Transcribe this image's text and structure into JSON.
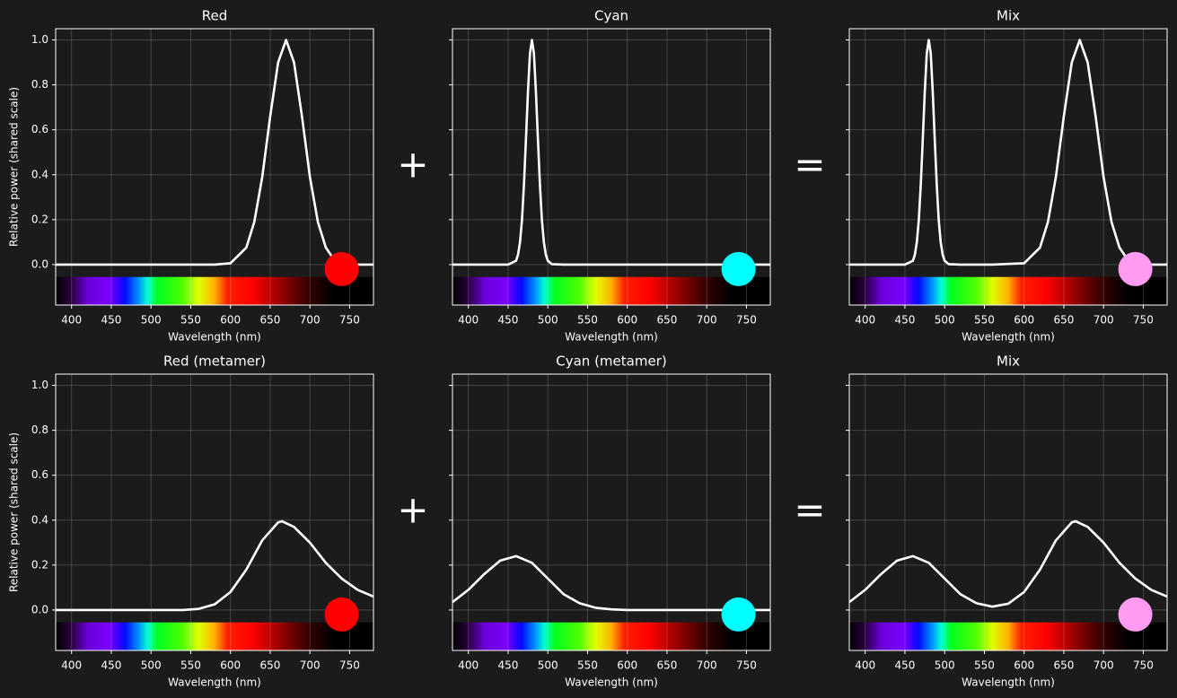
{
  "chart_data": [
    {
      "type": "line",
      "title": "Red",
      "xlabel": "Wavelength (nm)",
      "ylabel": "Relative power (shared scale)",
      "color": "#ffffff",
      "swatch_color": "#ff0000",
      "x": [
        380,
        420,
        460,
        500,
        540,
        580,
        600,
        620,
        630,
        640,
        650,
        660,
        670,
        680,
        690,
        700,
        710,
        720,
        730,
        740,
        760,
        780
      ],
      "values": [
        0,
        0,
        0,
        0,
        0,
        0,
        0.006,
        0.076,
        0.19,
        0.39,
        0.66,
        0.9,
        1,
        0.9,
        0.66,
        0.39,
        0.19,
        0.076,
        0.024,
        0.006,
        0,
        0
      ],
      "xlim": [
        380,
        780
      ],
      "xticks": [
        400,
        450,
        500,
        550,
        600,
        650,
        700,
        750
      ],
      "ylim": [
        -0.18,
        1.05
      ],
      "yticks": [
        {
          "value": 0,
          "label": "0.0"
        },
        0.2,
        0.4,
        0.6,
        0.8,
        {
          "value": 1,
          "label": "1.0"
        }
      ],
      "grid": true,
      "show_ytick_labels": true
    },
    {
      "type": "line",
      "title": "Cyan",
      "xlabel": "Wavelength (nm)",
      "color": "#ffffff",
      "swatch_color": "#00ffff",
      "x": [
        380,
        420,
        450,
        460,
        462.5,
        465,
        467.5,
        470,
        472.5,
        475,
        477.5,
        480,
        482.5,
        485,
        487.5,
        490,
        492.5,
        495,
        497.5,
        500,
        505,
        520,
        600,
        700,
        780
      ],
      "values": [
        0,
        0,
        0,
        0.017,
        0.044,
        0.1,
        0.2,
        0.36,
        0.56,
        0.77,
        0.94,
        1,
        0.94,
        0.77,
        0.56,
        0.36,
        0.2,
        0.1,
        0.044,
        0.017,
        0.002,
        0,
        0,
        0,
        0
      ],
      "xlim": [
        380,
        780
      ],
      "xticks": [
        400,
        450,
        500,
        550,
        600,
        650,
        700,
        750
      ],
      "ylim": [
        -0.18,
        1.05
      ],
      "yticks": [
        0,
        0.2,
        0.4,
        0.6,
        0.8,
        1
      ],
      "grid": true,
      "show_ytick_labels": false
    },
    {
      "type": "line",
      "title": "Mix",
      "xlabel": "Wavelength (nm)",
      "color": "#ffffff",
      "swatch_color": "#ff9bf0",
      "x": [
        380,
        420,
        450,
        460,
        462.5,
        465,
        467.5,
        470,
        472.5,
        475,
        477.5,
        480,
        482.5,
        485,
        487.5,
        490,
        492.5,
        495,
        497.5,
        500,
        505,
        520,
        560,
        600,
        620,
        630,
        640,
        650,
        660,
        670,
        680,
        690,
        700,
        710,
        720,
        730,
        740,
        760,
        780
      ],
      "values": [
        0,
        0,
        0,
        0.017,
        0.044,
        0.1,
        0.2,
        0.36,
        0.56,
        0.77,
        0.94,
        1,
        0.94,
        0.77,
        0.56,
        0.36,
        0.2,
        0.1,
        0.044,
        0.017,
        0.002,
        0,
        0,
        0.006,
        0.076,
        0.19,
        0.39,
        0.66,
        0.9,
        1,
        0.9,
        0.66,
        0.39,
        0.19,
        0.076,
        0.024,
        0.006,
        0,
        0
      ],
      "xlim": [
        380,
        780
      ],
      "xticks": [
        400,
        450,
        500,
        550,
        600,
        650,
        700,
        750
      ],
      "ylim": [
        -0.18,
        1.05
      ],
      "yticks": [
        0,
        0.2,
        0.4,
        0.6,
        0.8,
        1
      ],
      "grid": true,
      "show_ytick_labels": false
    },
    {
      "type": "line",
      "title": "Red (metamer)",
      "xlabel": "Wavelength (nm)",
      "ylabel": "Relative power (shared scale)",
      "color": "#ffffff",
      "swatch_color": "#ff0000",
      "x": [
        380,
        420,
        460,
        500,
        540,
        560,
        580,
        600,
        620,
        640,
        660,
        665,
        680,
        700,
        720,
        740,
        760,
        780
      ],
      "values": [
        0,
        0,
        0,
        0,
        0,
        0.005,
        0.025,
        0.08,
        0.18,
        0.31,
        0.39,
        0.395,
        0.37,
        0.3,
        0.21,
        0.14,
        0.09,
        0.06
      ],
      "xlim": [
        380,
        780
      ],
      "xticks": [
        400,
        450,
        500,
        550,
        600,
        650,
        700,
        750
      ],
      "ylim": [
        -0.18,
        1.05
      ],
      "yticks": [
        {
          "value": 0,
          "label": "0.0"
        },
        0.2,
        0.4,
        0.6,
        0.8,
        {
          "value": 1,
          "label": "1.0"
        }
      ],
      "grid": true,
      "show_ytick_labels": true
    },
    {
      "type": "line",
      "title": "Cyan (metamer)",
      "xlabel": "Wavelength (nm)",
      "color": "#ffffff",
      "swatch_color": "#00ffff",
      "x": [
        380,
        400,
        420,
        440,
        460,
        480,
        500,
        520,
        540,
        560,
        580,
        600,
        700,
        780
      ],
      "values": [
        0.035,
        0.09,
        0.16,
        0.22,
        0.24,
        0.21,
        0.14,
        0.07,
        0.03,
        0.01,
        0.003,
        0,
        0,
        0
      ],
      "xlim": [
        380,
        780
      ],
      "xticks": [
        400,
        450,
        500,
        550,
        600,
        650,
        700,
        750
      ],
      "ylim": [
        -0.18,
        1.05
      ],
      "yticks": [
        0,
        0.2,
        0.4,
        0.6,
        0.8,
        1
      ],
      "grid": true,
      "show_ytick_labels": false
    },
    {
      "type": "line",
      "title": "Mix",
      "xlabel": "Wavelength (nm)",
      "color": "#ffffff",
      "swatch_color": "#ff9bf0",
      "x": [
        380,
        400,
        420,
        440,
        460,
        480,
        500,
        520,
        540,
        560,
        580,
        600,
        620,
        640,
        660,
        665,
        680,
        700,
        720,
        740,
        760,
        780
      ],
      "values": [
        0.035,
        0.09,
        0.16,
        0.22,
        0.24,
        0.21,
        0.14,
        0.07,
        0.03,
        0.015,
        0.028,
        0.08,
        0.18,
        0.31,
        0.39,
        0.395,
        0.37,
        0.3,
        0.21,
        0.14,
        0.09,
        0.06
      ],
      "xlim": [
        380,
        780
      ],
      "xticks": [
        400,
        450,
        500,
        550,
        600,
        650,
        700,
        750
      ],
      "ylim": [
        -0.18,
        1.05
      ],
      "yticks": [
        0,
        0.2,
        0.4,
        0.6,
        0.8,
        1
      ],
      "grid": true,
      "show_ytick_labels": false
    }
  ],
  "operators": [
    "+",
    "=",
    "+",
    "="
  ]
}
